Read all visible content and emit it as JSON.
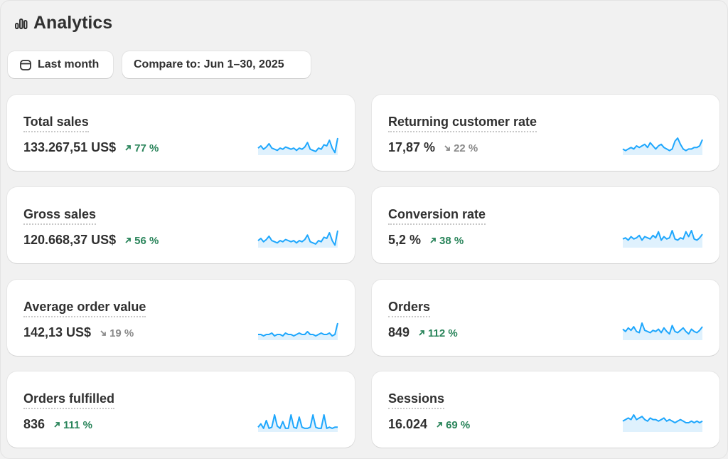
{
  "header": {
    "title": "Analytics",
    "icon": "bar-chart-icon"
  },
  "filters": {
    "date_range": "Last month",
    "compare": "Compare to: Jun 1–30, 2025"
  },
  "colors": {
    "up": "#29845a",
    "down": "#8a8a8a",
    "spark": "#1ea7fd"
  },
  "metrics": [
    {
      "title": "Total sales",
      "value": "133.267,51 US$",
      "change": "77 %",
      "direction": "up",
      "trend": [
        5,
        7,
        4,
        6,
        9,
        5,
        4,
        3,
        5,
        4,
        6,
        5,
        4,
        5,
        3,
        5,
        4,
        6,
        10,
        4,
        3,
        2,
        5,
        4,
        8,
        7,
        12,
        5,
        1,
        14
      ]
    },
    {
      "title": "Returning customer rate",
      "value": "17,87 %",
      "change": "22 %",
      "direction": "down",
      "trend": [
        3,
        2,
        3,
        4,
        3,
        5,
        4,
        5,
        6,
        4,
        7,
        5,
        3,
        5,
        6,
        4,
        3,
        2,
        3,
        8,
        10,
        6,
        3,
        2,
        3,
        3,
        4,
        4,
        5,
        9
      ]
    },
    {
      "title": "Gross sales",
      "value": "120.668,37 US$",
      "change": "56 %",
      "direction": "up",
      "trend": [
        5,
        7,
        4,
        6,
        9,
        5,
        4,
        3,
        5,
        4,
        6,
        5,
        4,
        5,
        3,
        5,
        4,
        6,
        10,
        4,
        3,
        2,
        5,
        4,
        8,
        7,
        12,
        5,
        1,
        14
      ]
    },
    {
      "title": "Conversion rate",
      "value": "5,2 %",
      "change": "38 %",
      "direction": "up",
      "trend": [
        6,
        7,
        5,
        8,
        6,
        7,
        9,
        5,
        8,
        7,
        6,
        9,
        7,
        12,
        5,
        8,
        6,
        7,
        13,
        6,
        5,
        7,
        6,
        12,
        8,
        13,
        6,
        5,
        7,
        10
      ]
    },
    {
      "title": "Average order value",
      "value": "142,13 US$",
      "change": "19 %",
      "direction": "down",
      "trend": [
        3,
        3,
        2,
        3,
        3,
        4,
        2,
        3,
        3,
        2,
        4,
        3,
        3,
        2,
        3,
        4,
        3,
        3,
        5,
        3,
        3,
        2,
        3,
        4,
        3,
        3,
        4,
        2,
        3,
        11
      ]
    },
    {
      "title": "Orders",
      "value": "849",
      "change": "112 %",
      "direction": "up",
      "trend": [
        8,
        6,
        9,
        7,
        10,
        6,
        5,
        13,
        7,
        6,
        5,
        7,
        6,
        8,
        5,
        9,
        6,
        4,
        11,
        6,
        5,
        7,
        9,
        6,
        4,
        8,
        6,
        5,
        7,
        10
      ]
    },
    {
      "title": "Orders fulfilled",
      "value": "836",
      "change": "111 %",
      "direction": "up",
      "trend": [
        3,
        6,
        2,
        9,
        2,
        3,
        14,
        4,
        2,
        8,
        2,
        2,
        14,
        3,
        2,
        12,
        3,
        2,
        2,
        3,
        14,
        3,
        2,
        2,
        14,
        2,
        3,
        2,
        3,
        3
      ]
    },
    {
      "title": "Sessions",
      "value": "16.024",
      "change": "69 %",
      "direction": "up",
      "trend": [
        6,
        7,
        8,
        7,
        10,
        7,
        8,
        9,
        7,
        6,
        8,
        7,
        7,
        6,
        7,
        8,
        6,
        7,
        6,
        5,
        6,
        7,
        6,
        5,
        5,
        6,
        5,
        6,
        5,
        6
      ]
    }
  ]
}
